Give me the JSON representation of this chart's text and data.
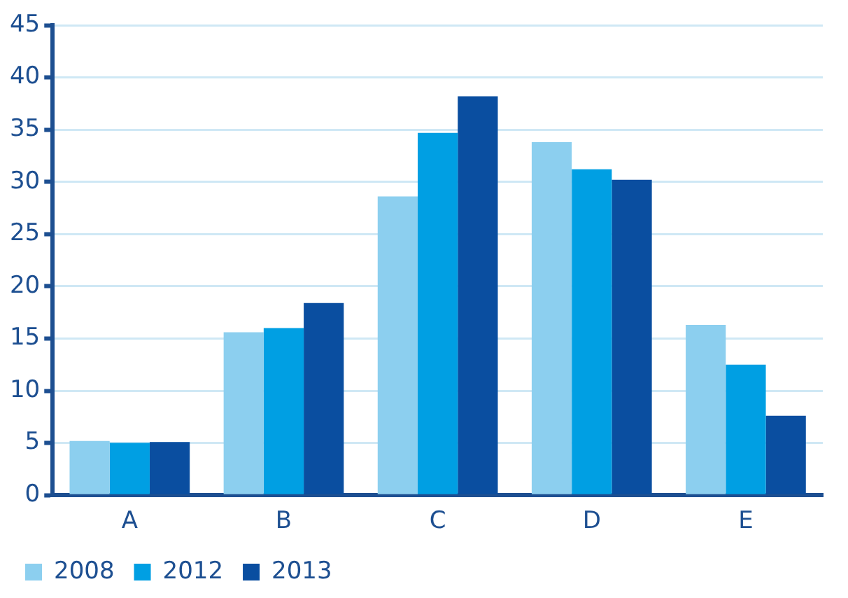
{
  "chart_data": {
    "type": "bar",
    "categories": [
      "A",
      "B",
      "C",
      "D",
      "E"
    ],
    "series": [
      {
        "name": "2008",
        "color": "#8ccfef",
        "values": [
          5.2,
          15.6,
          28.6,
          33.8,
          16.3
        ]
      },
      {
        "name": "2012",
        "color": "#009fe3",
        "values": [
          5.0,
          16.0,
          34.7,
          31.2,
          12.5
        ]
      },
      {
        "name": "2013",
        "color": "#0a4ea0",
        "values": [
          5.1,
          18.4,
          38.2,
          30.2,
          7.6
        ]
      }
    ],
    "ylim": [
      0,
      45
    ],
    "yticks": [
      0,
      5,
      10,
      15,
      20,
      25,
      30,
      35,
      40,
      45
    ],
    "grid": "y",
    "legend": "bottom left"
  }
}
